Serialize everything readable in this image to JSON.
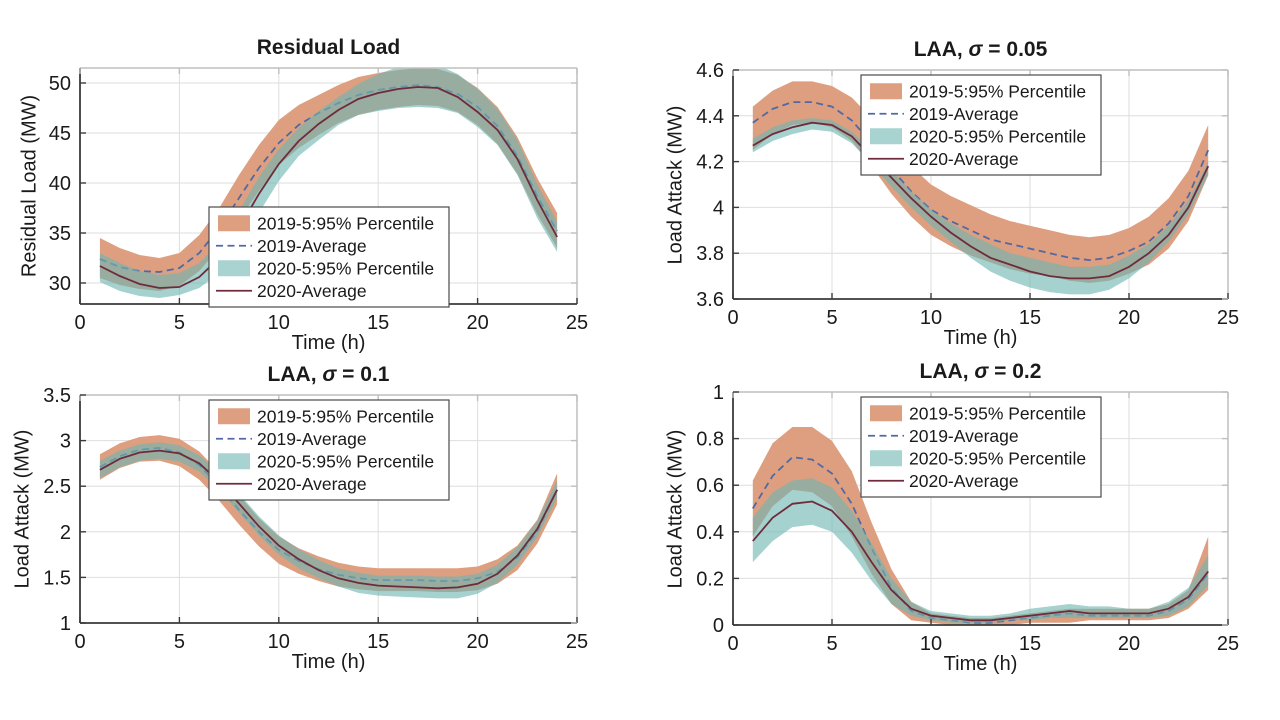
{
  "figure": {
    "background": "#ffffff"
  },
  "colors": {
    "band_2019": "#DD9F80",
    "band_2020": "rgba(110,182,178,0.62)",
    "band_2020_swatch": "#A8D3D1",
    "line_2019": "#5169A3",
    "line_2020": "#6F2B3C",
    "grid": "#DEDEDE",
    "axis_dark": "#3A3A3A",
    "axis_light": "#BFBFBF",
    "text": "#1a1a1a",
    "legend_border": "#4a4a4a",
    "legend_bg": "#ffffff"
  },
  "legend": {
    "entries": [
      {
        "label": "2019-5:95% Percentile",
        "swatch": "band",
        "color_key": "band_2019"
      },
      {
        "label": "2019-Average",
        "swatch": "dashed",
        "color_key": "line_2019"
      },
      {
        "label": "2020-5:95% Percentile",
        "swatch": "band",
        "color_key": "band_2020_swatch"
      },
      {
        "label": "2020-Average",
        "swatch": "solid",
        "color_key": "line_2020"
      }
    ]
  },
  "chart_data": [
    {
      "type": "area",
      "title": "Residual Load",
      "xlabel": "Time (h)",
      "ylabel": "Residual Load (MW)",
      "xlim": [
        0,
        25
      ],
      "ylim": [
        27.9,
        51.5
      ],
      "xticks": [
        0,
        5,
        10,
        15,
        20,
        25
      ],
      "xtick_labels": [
        "0",
        "5",
        "10",
        "15",
        "20",
        "25"
      ],
      "yticks": [
        30,
        35,
        40,
        45,
        50
      ],
      "ytick_labels": [
        "30",
        "35",
        "40",
        "45",
        "50"
      ],
      "grid": true,
      "legend_position": "bottom-center",
      "x": [
        1,
        2,
        3,
        4,
        5,
        6,
        7,
        8,
        9,
        10,
        11,
        12,
        13,
        14,
        15,
        16,
        17,
        18,
        19,
        20,
        21,
        22,
        23,
        24
      ],
      "series": [
        {
          "name": "2019-5:95% Percentile",
          "type": "band",
          "color_key": "band_2019",
          "upper": [
            34.5,
            33.5,
            32.8,
            32.5,
            33.0,
            34.8,
            37.5,
            40.8,
            43.8,
            46.3,
            47.8,
            48.8,
            49.8,
            50.6,
            51.0,
            51.3,
            51.5,
            51.4,
            50.8,
            49.5,
            47.6,
            44.6,
            40.5,
            37.0
          ],
          "lower": [
            30.5,
            29.8,
            29.4,
            29.2,
            29.7,
            31.2,
            33.5,
            36.3,
            39.2,
            41.8,
            43.5,
            44.8,
            46.0,
            46.8,
            47.3,
            47.6,
            47.8,
            47.7,
            47.1,
            45.8,
            43.9,
            40.9,
            36.9,
            33.5
          ]
        },
        {
          "name": "2019-Average",
          "type": "dashed-line",
          "color_key": "line_2019",
          "values": [
            32.4,
            31.6,
            31.2,
            31.1,
            31.5,
            33.0,
            35.5,
            38.5,
            41.5,
            44.0,
            45.8,
            47.0,
            48.0,
            48.8,
            49.3,
            49.6,
            49.8,
            49.6,
            48.9,
            47.6,
            45.7,
            42.7,
            38.7,
            35.2
          ]
        },
        {
          "name": "2020-5:95% Percentile",
          "type": "band",
          "color_key": "band_2020",
          "upper": [
            33.0,
            32.0,
            31.2,
            30.8,
            31.0,
            32.0,
            34.0,
            37.2,
            40.6,
            43.4,
            45.5,
            47.2,
            48.6,
            49.9,
            50.9,
            51.6,
            52.0,
            51.8,
            50.9,
            49.4,
            47.4,
            44.3,
            39.9,
            36.1
          ],
          "lower": [
            30.1,
            29.2,
            28.7,
            28.5,
            28.8,
            29.5,
            31.0,
            33.8,
            37.0,
            40.2,
            42.7,
            44.3,
            45.8,
            46.8,
            47.2,
            47.5,
            47.6,
            47.5,
            47.0,
            45.6,
            43.8,
            40.8,
            36.5,
            33.1
          ]
        },
        {
          "name": "2020-Average",
          "type": "solid-line",
          "color_key": "line_2020",
          "values": [
            31.7,
            30.7,
            29.9,
            29.5,
            29.6,
            30.6,
            32.5,
            35.5,
            38.9,
            41.9,
            44.2,
            45.9,
            47.3,
            48.4,
            49.0,
            49.4,
            49.6,
            49.5,
            48.6,
            47.1,
            45.3,
            42.4,
            38.3,
            34.6
          ]
        }
      ]
    },
    {
      "type": "area",
      "title": "LAA, σ = 0.05",
      "xlabel": "Time (h)",
      "ylabel": "Load Attack (MW)",
      "xlim": [
        0,
        25
      ],
      "ylim": [
        3.6,
        4.6
      ],
      "xticks": [
        0,
        5,
        10,
        15,
        20,
        25
      ],
      "xtick_labels": [
        "0",
        "5",
        "10",
        "15",
        "20",
        "25"
      ],
      "yticks": [
        3.6,
        3.8,
        4.0,
        4.2,
        4.4,
        4.6
      ],
      "ytick_labels": [
        "3.6",
        "3.8",
        "4",
        "4.2",
        "4.4",
        "4.6"
      ],
      "grid": true,
      "legend_position": "top-center",
      "x": [
        1,
        2,
        3,
        4,
        5,
        6,
        7,
        8,
        9,
        10,
        11,
        12,
        13,
        14,
        15,
        16,
        17,
        18,
        19,
        20,
        21,
        22,
        23,
        24
      ],
      "series": [
        {
          "name": "2019-5:95% Percentile",
          "type": "band",
          "color_key": "band_2019",
          "upper": [
            4.44,
            4.51,
            4.55,
            4.55,
            4.53,
            4.48,
            4.39,
            4.28,
            4.18,
            4.1,
            4.05,
            4.01,
            3.97,
            3.94,
            3.92,
            3.9,
            3.88,
            3.87,
            3.88,
            3.91,
            3.96,
            4.04,
            4.16,
            4.36
          ],
          "lower": [
            4.25,
            4.32,
            4.36,
            4.37,
            4.35,
            4.29,
            4.18,
            4.06,
            3.96,
            3.88,
            3.83,
            3.79,
            3.76,
            3.73,
            3.71,
            3.7,
            3.68,
            3.67,
            3.68,
            3.71,
            3.75,
            3.82,
            3.94,
            4.14
          ]
        },
        {
          "name": "2019-Average",
          "type": "dashed-line",
          "color_key": "line_2019",
          "values": [
            4.37,
            4.43,
            4.46,
            4.46,
            4.44,
            4.38,
            4.28,
            4.17,
            4.07,
            3.99,
            3.94,
            3.9,
            3.86,
            3.84,
            3.82,
            3.8,
            3.78,
            3.77,
            3.78,
            3.81,
            3.85,
            3.93,
            4.05,
            4.25
          ]
        },
        {
          "name": "2020-5:95% Percentile",
          "type": "band",
          "color_key": "band_2020",
          "upper": [
            4.3,
            4.35,
            4.38,
            4.39,
            4.38,
            4.33,
            4.25,
            4.16,
            4.07,
            3.99,
            3.93,
            3.88,
            3.84,
            3.8,
            3.78,
            3.76,
            3.74,
            3.74,
            3.75,
            3.79,
            3.84,
            3.92,
            4.03,
            4.2
          ],
          "lower": [
            4.24,
            4.29,
            4.32,
            4.34,
            4.33,
            4.28,
            4.19,
            4.09,
            4.0,
            3.92,
            3.85,
            3.78,
            3.72,
            3.68,
            3.65,
            3.63,
            3.62,
            3.62,
            3.64,
            3.69,
            3.76,
            3.85,
            3.97,
            4.14
          ]
        },
        {
          "name": "2020-Average",
          "type": "solid-line",
          "color_key": "line_2020",
          "values": [
            4.27,
            4.32,
            4.35,
            4.37,
            4.36,
            4.31,
            4.22,
            4.13,
            4.04,
            3.96,
            3.89,
            3.83,
            3.78,
            3.75,
            3.72,
            3.7,
            3.69,
            3.69,
            3.7,
            3.74,
            3.8,
            3.88,
            4.0,
            4.18
          ]
        }
      ]
    },
    {
      "type": "area",
      "title": "LAA, σ = 0.1",
      "xlabel": "Time (h)",
      "ylabel": "Load Attack (MW)",
      "xlim": [
        0,
        25
      ],
      "ylim": [
        1,
        3.5
      ],
      "xticks": [
        0,
        5,
        10,
        15,
        20,
        25
      ],
      "xtick_labels": [
        "0",
        "5",
        "10",
        "15",
        "20",
        "25"
      ],
      "yticks": [
        1,
        1.5,
        2,
        2.5,
        3,
        3.5
      ],
      "ytick_labels": [
        "1",
        "1.5",
        "2",
        "2.5",
        "3",
        "3.5"
      ],
      "grid": true,
      "legend_position": "top-center",
      "x": [
        1,
        2,
        3,
        4,
        5,
        6,
        7,
        8,
        9,
        10,
        11,
        12,
        13,
        14,
        15,
        16,
        17,
        18,
        19,
        20,
        21,
        22,
        23,
        24
      ],
      "series": [
        {
          "name": "2019-5:95% Percentile",
          "type": "band",
          "color_key": "band_2019",
          "upper": [
            2.85,
            2.97,
            3.04,
            3.06,
            3.02,
            2.88,
            2.65,
            2.4,
            2.15,
            1.95,
            1.82,
            1.73,
            1.66,
            1.62,
            1.6,
            1.6,
            1.6,
            1.6,
            1.6,
            1.62,
            1.7,
            1.85,
            2.13,
            2.64
          ],
          "lower": [
            2.57,
            2.7,
            2.77,
            2.78,
            2.72,
            2.57,
            2.34,
            2.08,
            1.84,
            1.65,
            1.54,
            1.46,
            1.4,
            1.37,
            1.35,
            1.35,
            1.35,
            1.34,
            1.34,
            1.36,
            1.43,
            1.58,
            1.87,
            2.3
          ]
        },
        {
          "name": "2019-Average",
          "type": "dashed-line",
          "color_key": "line_2019",
          "values": [
            2.71,
            2.83,
            2.9,
            2.92,
            2.87,
            2.73,
            2.5,
            2.24,
            2.0,
            1.8,
            1.68,
            1.59,
            1.53,
            1.49,
            1.47,
            1.47,
            1.47,
            1.46,
            1.46,
            1.49,
            1.56,
            1.72,
            2.0,
            2.46
          ]
        },
        {
          "name": "2020-5:95% Percentile",
          "type": "band",
          "color_key": "band_2020",
          "upper": [
            2.78,
            2.89,
            2.96,
            2.98,
            2.95,
            2.84,
            2.65,
            2.42,
            2.17,
            1.96,
            1.81,
            1.69,
            1.6,
            1.55,
            1.52,
            1.52,
            1.52,
            1.51,
            1.51,
            1.54,
            1.64,
            1.83,
            2.12,
            2.56
          ],
          "lower": [
            2.59,
            2.71,
            2.78,
            2.8,
            2.77,
            2.66,
            2.46,
            2.21,
            1.96,
            1.75,
            1.6,
            1.49,
            1.4,
            1.33,
            1.3,
            1.29,
            1.28,
            1.27,
            1.27,
            1.32,
            1.44,
            1.64,
            1.94,
            2.37
          ]
        },
        {
          "name": "2020-Average",
          "type": "solid-line",
          "color_key": "line_2020",
          "values": [
            2.68,
            2.8,
            2.87,
            2.89,
            2.86,
            2.75,
            2.55,
            2.31,
            2.06,
            1.85,
            1.7,
            1.58,
            1.49,
            1.44,
            1.41,
            1.4,
            1.39,
            1.38,
            1.39,
            1.43,
            1.54,
            1.74,
            2.03,
            2.46
          ]
        }
      ]
    },
    {
      "type": "area",
      "title": "LAA, σ = 0.2",
      "xlabel": "Time (h)",
      "ylabel": "Load Attack (MW)",
      "xlim": [
        0,
        25
      ],
      "ylim": [
        0,
        1
      ],
      "xticks": [
        0,
        5,
        10,
        15,
        20,
        25
      ],
      "xtick_labels": [
        "0",
        "5",
        "10",
        "15",
        "20",
        "25"
      ],
      "yticks": [
        0,
        0.2,
        0.4,
        0.6,
        0.8,
        1
      ],
      "ytick_labels": [
        "0",
        "0.2",
        "0.4",
        "0.6",
        "0.8",
        "1"
      ],
      "grid": true,
      "legend_position": "top-center",
      "x": [
        1,
        2,
        3,
        4,
        5,
        6,
        7,
        8,
        9,
        10,
        11,
        12,
        13,
        14,
        15,
        16,
        17,
        18,
        19,
        20,
        21,
        22,
        23,
        24
      ],
      "series": [
        {
          "name": "2019-5:95% Percentile",
          "type": "band",
          "color_key": "band_2019",
          "upper": [
            0.62,
            0.78,
            0.85,
            0.85,
            0.79,
            0.66,
            0.44,
            0.24,
            0.1,
            0.05,
            0.04,
            0.03,
            0.03,
            0.04,
            0.05,
            0.06,
            0.07,
            0.07,
            0.07,
            0.07,
            0.07,
            0.09,
            0.15,
            0.38
          ],
          "lower": [
            0.38,
            0.51,
            0.58,
            0.57,
            0.51,
            0.38,
            0.22,
            0.09,
            0.02,
            0.01,
            0.0,
            0.0,
            0.0,
            0.0,
            0.01,
            0.01,
            0.01,
            0.02,
            0.02,
            0.02,
            0.02,
            0.03,
            0.07,
            0.15
          ]
        },
        {
          "name": "2019-Average",
          "type": "dashed-line",
          "color_key": "line_2019",
          "values": [
            0.5,
            0.64,
            0.72,
            0.71,
            0.65,
            0.52,
            0.33,
            0.16,
            0.06,
            0.03,
            0.02,
            0.01,
            0.01,
            0.02,
            0.03,
            0.04,
            0.05,
            0.04,
            0.04,
            0.04,
            0.04,
            0.06,
            0.11,
            0.22
          ]
        },
        {
          "name": "2020-5:95% Percentile",
          "type": "band",
          "color_key": "band_2020",
          "upper": [
            0.46,
            0.57,
            0.62,
            0.63,
            0.59,
            0.49,
            0.35,
            0.2,
            0.1,
            0.06,
            0.05,
            0.04,
            0.04,
            0.05,
            0.07,
            0.08,
            0.09,
            0.08,
            0.08,
            0.07,
            0.07,
            0.1,
            0.16,
            0.3
          ],
          "lower": [
            0.27,
            0.36,
            0.42,
            0.43,
            0.4,
            0.31,
            0.19,
            0.09,
            0.04,
            0.02,
            0.01,
            0.01,
            0.01,
            0.02,
            0.02,
            0.03,
            0.03,
            0.03,
            0.03,
            0.03,
            0.03,
            0.04,
            0.08,
            0.17
          ]
        },
        {
          "name": "2020-Average",
          "type": "solid-line",
          "color_key": "line_2020",
          "values": [
            0.36,
            0.46,
            0.52,
            0.53,
            0.49,
            0.4,
            0.27,
            0.15,
            0.07,
            0.04,
            0.03,
            0.02,
            0.02,
            0.03,
            0.04,
            0.05,
            0.06,
            0.05,
            0.05,
            0.05,
            0.05,
            0.07,
            0.12,
            0.23
          ]
        }
      ]
    }
  ]
}
